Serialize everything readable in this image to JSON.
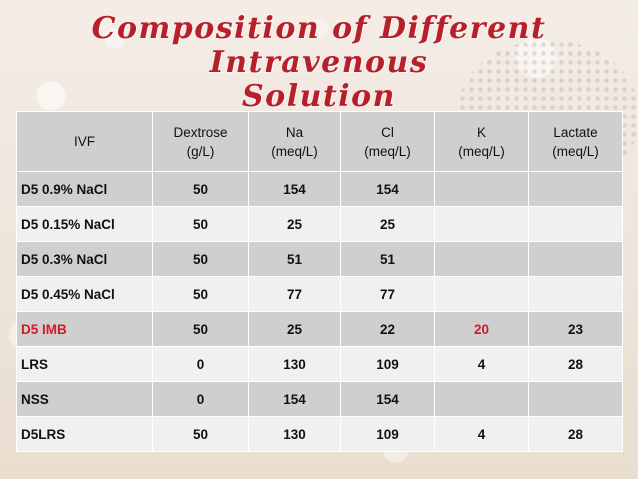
{
  "title_line1": "Composition of Different Intravenous",
  "title_line2": "Solution",
  "headers": [
    [
      "IVF",
      ""
    ],
    [
      "Dextrose",
      "(g/L)"
    ],
    [
      "Na",
      "(meq/L)"
    ],
    [
      "Cl",
      "(meq/L)"
    ],
    [
      "K",
      "(meq/L)"
    ],
    [
      "Lactate",
      "(meq/L)"
    ]
  ],
  "rows": [
    {
      "ivf": "D5 0.9% NaCl",
      "dextrose": "50",
      "na": "154",
      "cl": "154",
      "k": "",
      "lactate": ""
    },
    {
      "ivf": "D5 0.15% NaCl",
      "dextrose": "50",
      "na": "25",
      "cl": "25",
      "k": "",
      "lactate": ""
    },
    {
      "ivf": "D5 0.3% NaCl",
      "dextrose": "50",
      "na": "51",
      "cl": "51",
      "k": "",
      "lactate": ""
    },
    {
      "ivf": "D5 0.45% NaCl",
      "dextrose": "50",
      "na": "77",
      "cl": "77",
      "k": "",
      "lactate": ""
    },
    {
      "ivf": "D5 IMB",
      "dextrose": "50",
      "na": "25",
      "cl": "22",
      "k": "20",
      "lactate": "23"
    },
    {
      "ivf": "LRS",
      "dextrose": "0",
      "na": "130",
      "cl": "109",
      "k": "4",
      "lactate": "28"
    },
    {
      "ivf": "NSS",
      "dextrose": "0",
      "na": "154",
      "cl": "154",
      "k": "",
      "lactate": ""
    },
    {
      "ivf": "D5LRS",
      "dextrose": "50",
      "na": "130",
      "cl": "109",
      "k": "4",
      "lactate": "28"
    }
  ],
  "colors": {
    "title": "#b7202b",
    "highlight": "#d3192a",
    "row_dark": "#cfcfcf",
    "row_light": "#f0f0f0"
  }
}
